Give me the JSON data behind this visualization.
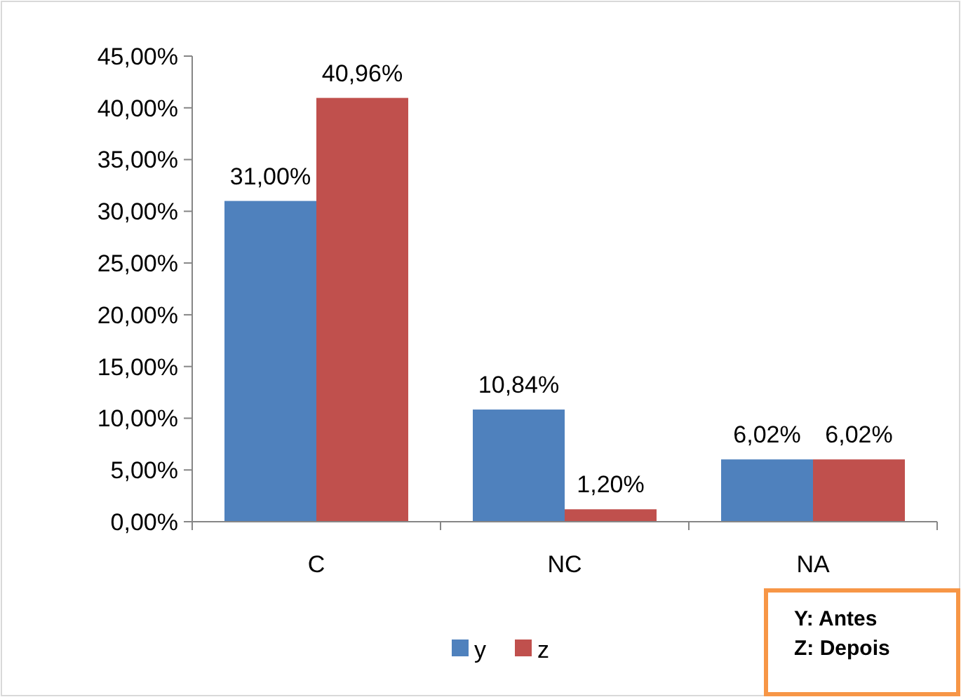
{
  "chart_data": {
    "type": "bar",
    "categories": [
      "C",
      "NC",
      "NA"
    ],
    "series": [
      {
        "name": "y",
        "color": "#4f81bd",
        "values": [
          31.0,
          10.84,
          6.02
        ],
        "value_labels": [
          "31,00%",
          "10,84%",
          "6,02%"
        ]
      },
      {
        "name": "z",
        "color": "#c0504d",
        "values": [
          40.96,
          1.2,
          6.02
        ],
        "value_labels": [
          "40,96%",
          "1,20%",
          "6,02%"
        ]
      }
    ],
    "ylim": [
      0,
      45
    ],
    "yticks": [
      {
        "value": 0,
        "label": "0,00%"
      },
      {
        "value": 5,
        "label": "5,00%"
      },
      {
        "value": 10,
        "label": "10,00%"
      },
      {
        "value": 15,
        "label": "15,00%"
      },
      {
        "value": 20,
        "label": "20,00%"
      },
      {
        "value": 25,
        "label": "25,00%"
      },
      {
        "value": 30,
        "label": "30,00%"
      },
      {
        "value": 35,
        "label": "35,00%"
      },
      {
        "value": 40,
        "label": "40,00%"
      },
      {
        "value": 45,
        "label": "45,00%"
      }
    ],
    "grid": false,
    "legend": "bottom",
    "annotations": [
      "Y: Antes\nZ: Depois"
    ]
  }
}
